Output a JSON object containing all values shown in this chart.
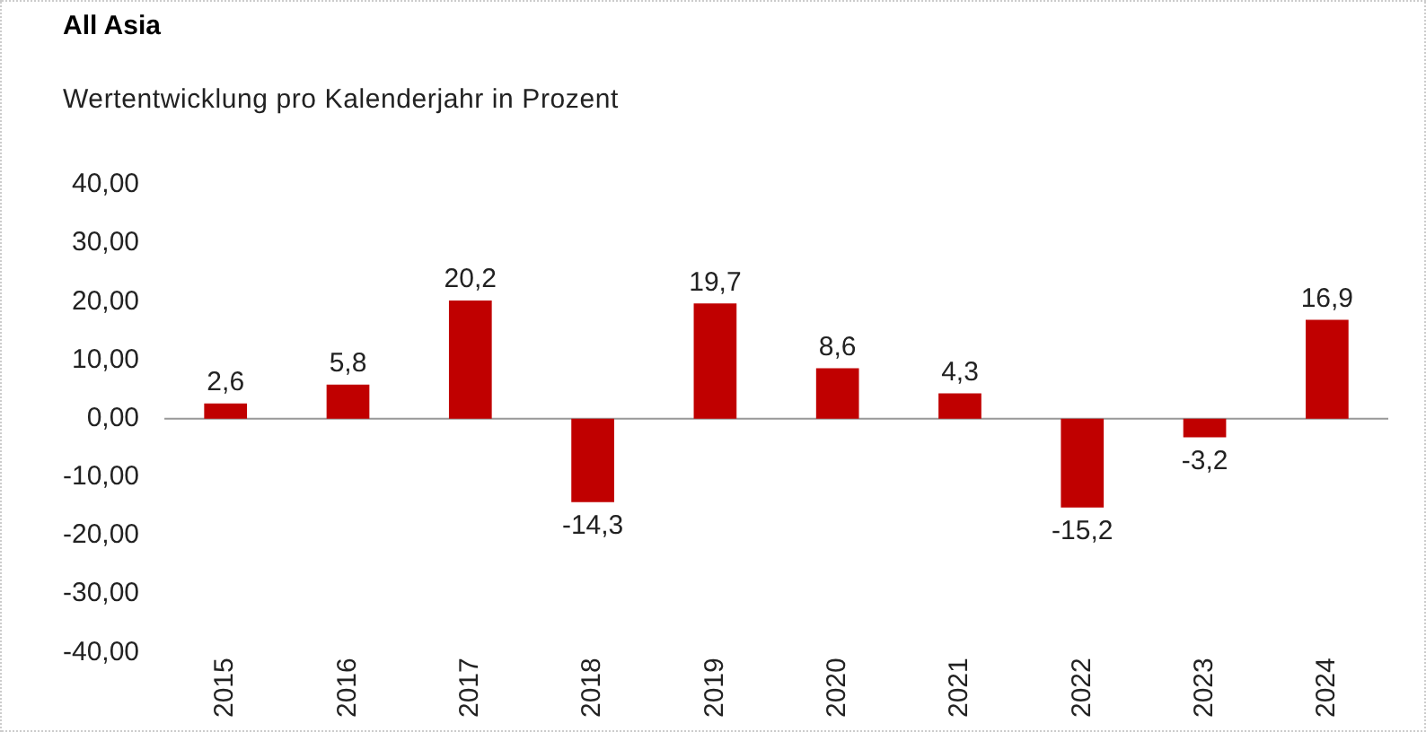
{
  "chart_data": {
    "type": "bar",
    "title": "All Asia",
    "subtitle": "Wertentwicklung pro Kalenderjahr in Prozent",
    "categories": [
      "2015",
      "2016",
      "2017",
      "2018",
      "2019",
      "2020",
      "2021",
      "2022",
      "2023",
      "2024"
    ],
    "values": [
      2.6,
      5.8,
      20.2,
      -14.3,
      19.7,
      8.6,
      4.3,
      -15.2,
      -3.2,
      16.9
    ],
    "value_labels": [
      "2,6",
      "5,8",
      "20,2",
      "-14,3",
      "19,7",
      "8,6",
      "4,3",
      "-15,2",
      "-3,2",
      "16,9"
    ],
    "color": "#c00000",
    "ylim": [
      -40,
      40
    ],
    "yticks": [
      {
        "value": 40,
        "label": "40,00"
      },
      {
        "value": 30,
        "label": "30,00"
      },
      {
        "value": 20,
        "label": "20,00"
      },
      {
        "value": 10,
        "label": "10,00"
      },
      {
        "value": 0,
        "label": "0,00"
      },
      {
        "value": -10,
        "label": "-10,00"
      },
      {
        "value": -20,
        "label": "-20,00"
      },
      {
        "value": -30,
        "label": "-30,00"
      },
      {
        "value": -40,
        "label": "-40,00"
      }
    ],
    "ref_lines": [
      {
        "axis": "y",
        "value": 0,
        "color": "#999999"
      }
    ],
    "grid": false,
    "legend": false
  }
}
